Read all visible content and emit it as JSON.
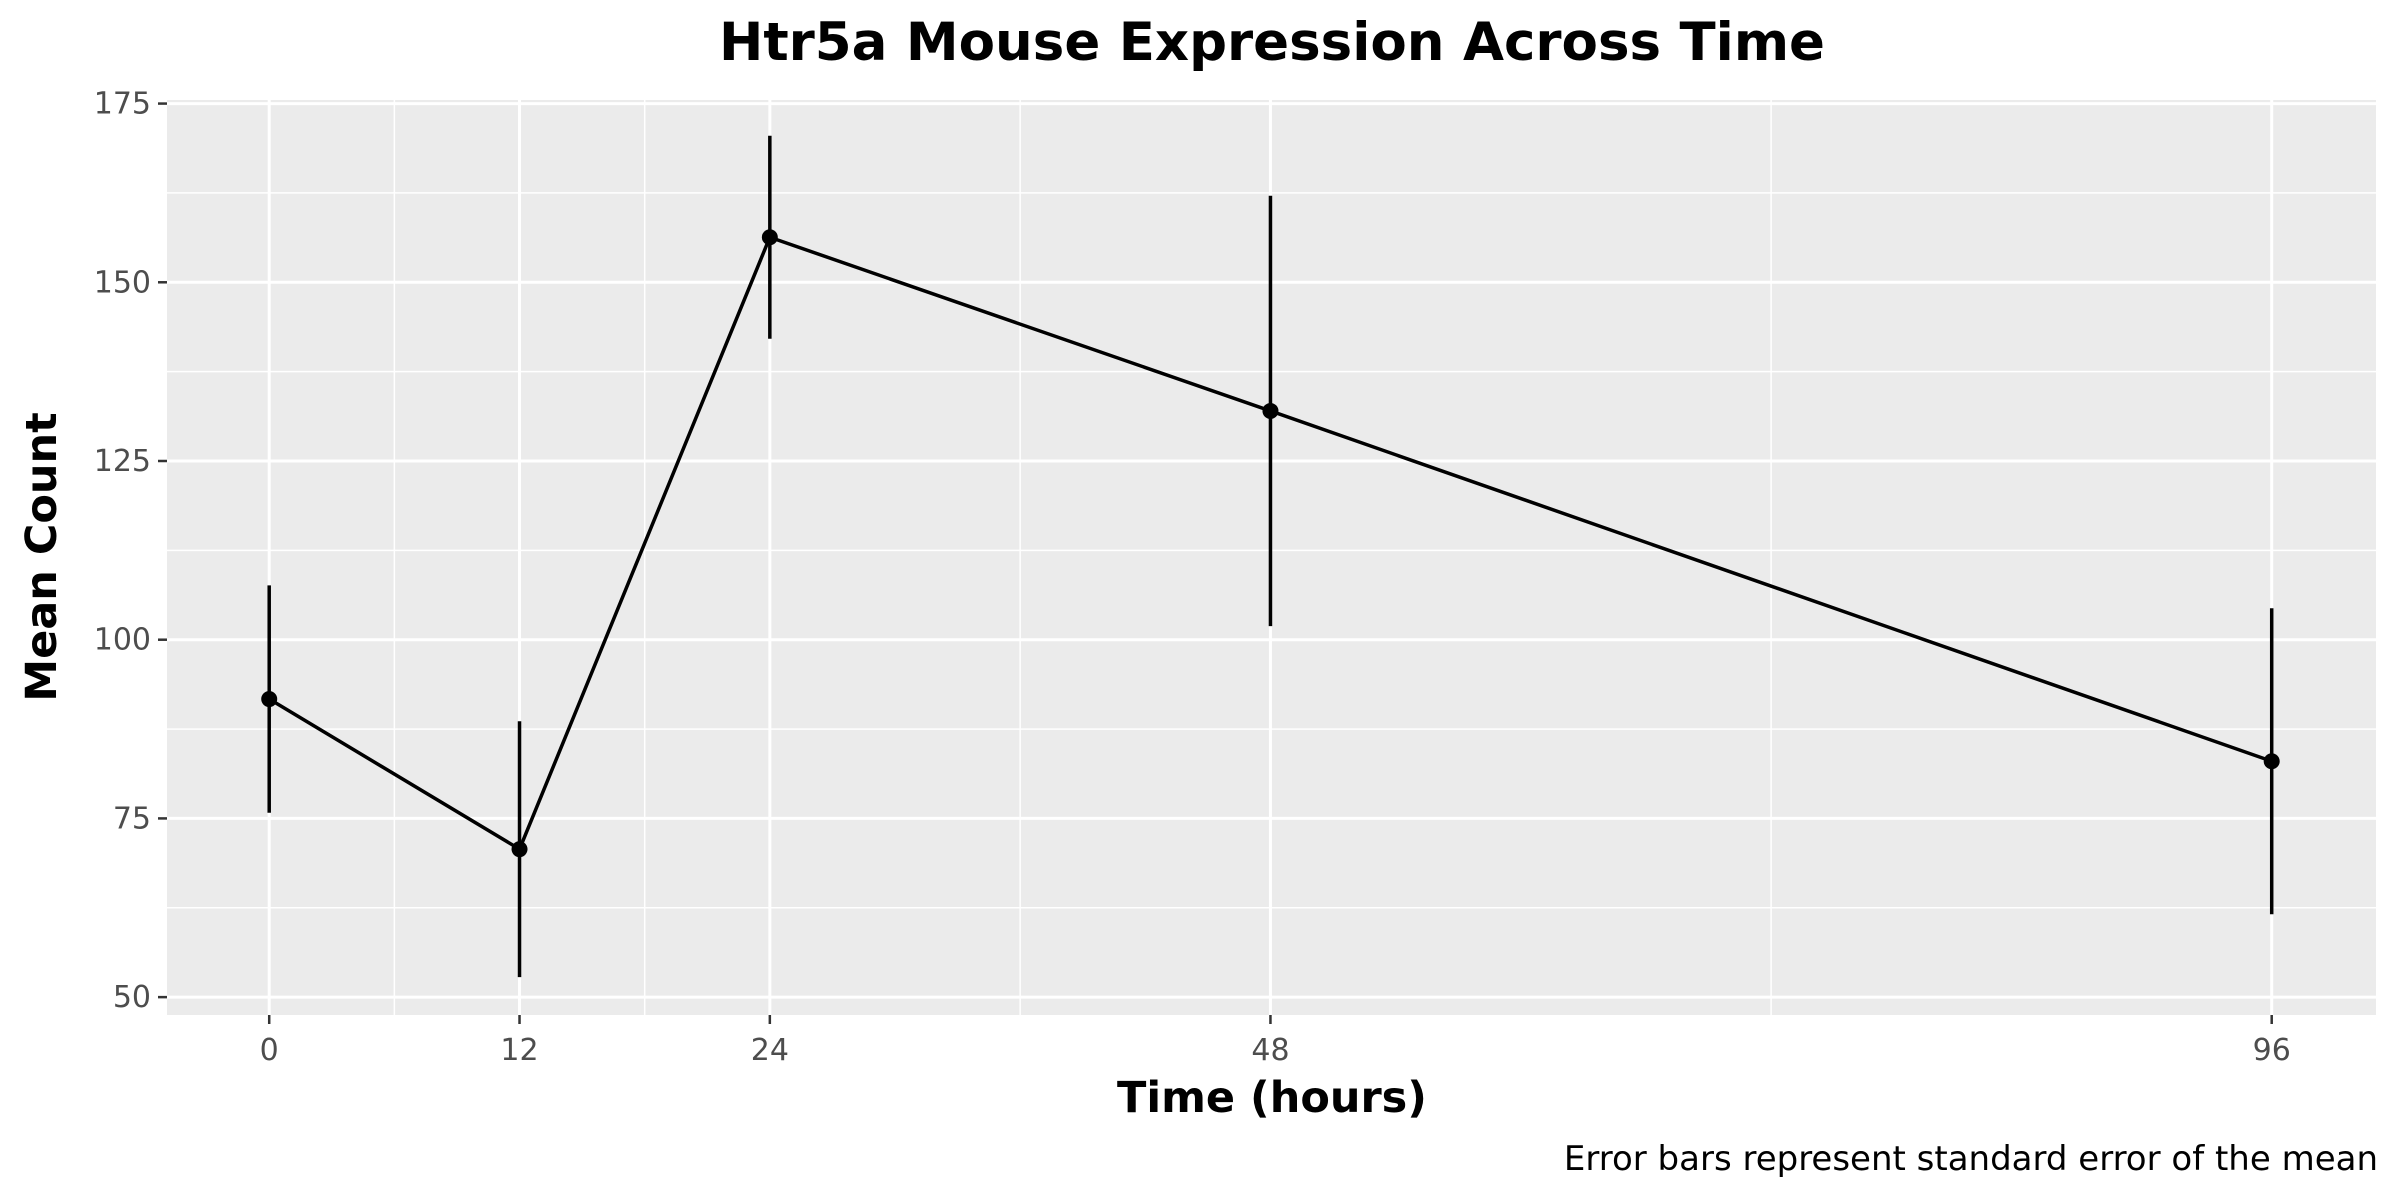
{
  "chart_data": {
    "type": "line",
    "title": "Htr5a Mouse Expression Across Time",
    "xlabel": "Time (hours)",
    "ylabel": "Mean Count",
    "caption": "Error bars represent standard error of the mean",
    "x": [
      0,
      12,
      24,
      48,
      96
    ],
    "x_tick_labels": [
      "0",
      "12",
      "24",
      "48",
      "96"
    ],
    "xlim": [
      -4.9,
      101
    ],
    "ylim": [
      47.5,
      175.5
    ],
    "y_ticks": [
      50,
      75,
      100,
      125,
      150,
      175
    ],
    "y_tick_labels": [
      "50",
      "75",
      "100",
      "125",
      "150",
      "175"
    ],
    "series": [
      {
        "values": [
          91.7,
          70.7,
          156.3,
          132.0,
          83.0
        ],
        "error_low": [
          75.8,
          52.8,
          142.1,
          101.9,
          61.6
        ],
        "error_high": [
          107.6,
          88.6,
          170.5,
          162.1,
          104.4
        ]
      }
    ],
    "grid": true,
    "colors": {
      "panel_background": "#ebebeb",
      "grid_line": "#ffffff",
      "series_line": "#000000",
      "tick_mark": "#333333"
    }
  }
}
